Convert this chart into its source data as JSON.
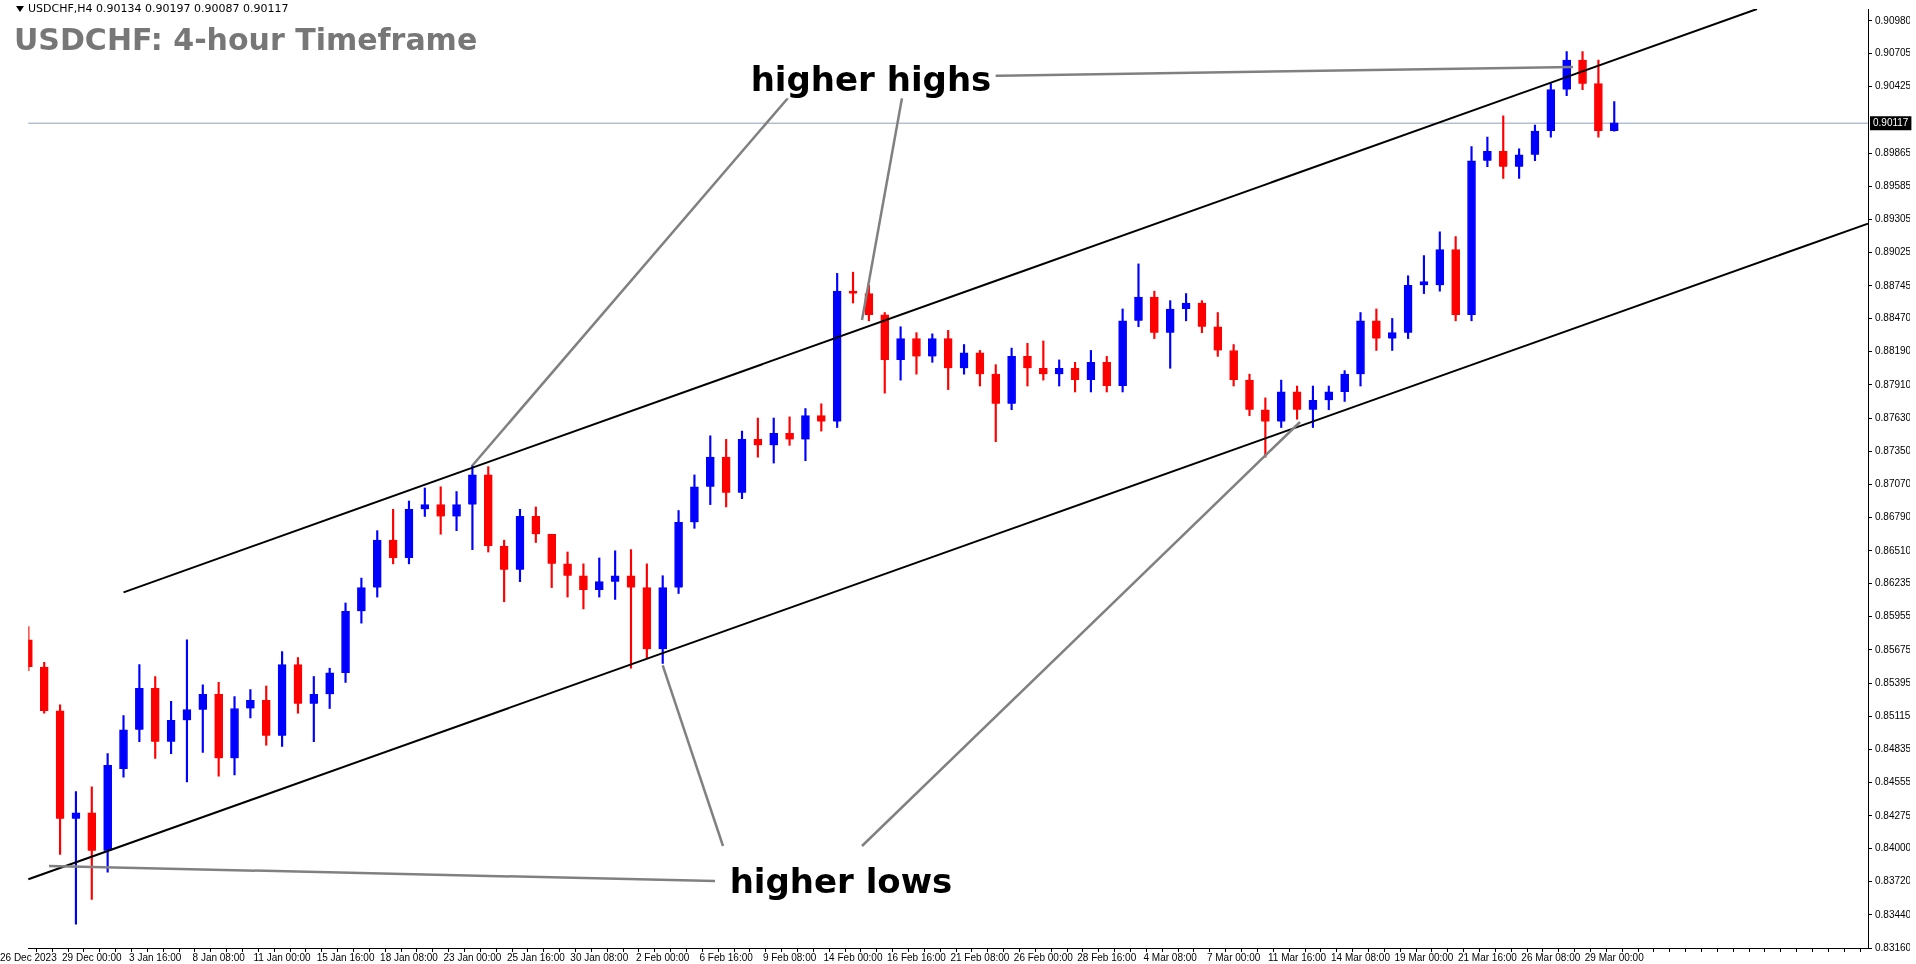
{
  "chart_data": {
    "type": "candlestick",
    "title": "USDCHF: 4-hour Timeframe",
    "annotations": [
      "USDCHF,H4  0.90134 0.90197 0.90087 0.90117",
      {
        "text": "higher highs",
        "x": "23 Jan 00:00",
        "y": 0.8723
      },
      {
        "text": "higher lows",
        "x": "2 Feb 00:00",
        "y": 0.8556
      }
    ],
    "categories": [
      "26 Dec 2023",
      null,
      null,
      null,
      "29 Dec 00:00",
      null,
      null,
      null,
      "3 Jan 16:00",
      null,
      null,
      null,
      "8 Jan 08:00",
      null,
      null,
      null,
      "11 Jan 00:00",
      null,
      null,
      null,
      "15 Jan 16:00",
      null,
      null,
      null,
      "18 Jan 08:00",
      null,
      null,
      null,
      "23 Jan 00:00",
      null,
      null,
      null,
      "25 Jan 16:00",
      null,
      null,
      null,
      "30 Jan 08:00",
      null,
      null,
      null,
      "2 Feb 00:00",
      null,
      null,
      null,
      "6 Feb 16:00",
      null,
      null,
      null,
      "9 Feb 08:00",
      null,
      null,
      null,
      "14 Feb 00:00",
      null,
      null,
      null,
      "16 Feb 16:00",
      null,
      null,
      null,
      "21 Feb 08:00",
      null,
      null,
      null,
      "26 Feb 00:00",
      null,
      null,
      null,
      "28 Feb 16:00",
      null,
      null,
      null,
      "4 Mar 08:00",
      null,
      null,
      null,
      "7 Mar 00:00",
      null,
      null,
      null,
      "11 Mar 16:00",
      null,
      null,
      null,
      "14 Mar 08:00",
      null,
      null,
      null,
      "19 Mar 00:00",
      null,
      null,
      null,
      "21 Mar 16:00",
      null,
      null,
      null,
      "26 Mar 08:00",
      null,
      null,
      null,
      "29 Mar 00:00",
      null,
      null,
      null,
      null,
      null,
      null,
      null,
      null,
      null,
      null,
      null,
      null,
      null,
      null,
      null,
      null
    ],
    "ohlc": [
      [
        0.8576,
        0.8587,
        0.855,
        0.8553
      ],
      [
        0.8553,
        0.8557,
        0.8514,
        0.8516
      ],
      [
        0.8516,
        0.8521,
        0.8395,
        0.8425
      ],
      [
        0.8425,
        0.8448,
        0.8336,
        0.843
      ],
      [
        0.843,
        0.8452,
        0.8357,
        0.8398
      ],
      [
        0.8398,
        0.848,
        0.838,
        0.847
      ],
      [
        0.8467,
        0.8512,
        0.846,
        0.85
      ],
      [
        0.85,
        0.8555,
        0.849,
        0.8535
      ],
      [
        0.8535,
        0.8545,
        0.8476,
        0.849
      ],
      [
        0.849,
        0.8524,
        0.848,
        0.8508
      ],
      [
        0.8508,
        0.8576,
        0.8456,
        0.8517
      ],
      [
        0.8517,
        0.8538,
        0.8481,
        0.853
      ],
      [
        0.853,
        0.854,
        0.8461,
        0.8476
      ],
      [
        0.8476,
        0.8528,
        0.8462,
        0.8518
      ],
      [
        0.8518,
        0.8534,
        0.851,
        0.8525
      ],
      [
        0.8525,
        0.8537,
        0.8487,
        0.8495
      ],
      [
        0.8495,
        0.8566,
        0.8486,
        0.8555
      ],
      [
        0.8555,
        0.8561,
        0.8514,
        0.8522
      ],
      [
        0.8522,
        0.8545,
        0.849,
        0.853
      ],
      [
        0.853,
        0.8552,
        0.8518,
        0.8548
      ],
      [
        0.8548,
        0.8607,
        0.854,
        0.86
      ],
      [
        0.86,
        0.8628,
        0.859,
        0.862
      ],
      [
        0.862,
        0.8668,
        0.8612,
        0.866
      ],
      [
        0.866,
        0.8686,
        0.864,
        0.8645
      ],
      [
        0.8645,
        0.8693,
        0.864,
        0.8686
      ],
      [
        0.8686,
        0.8704,
        0.868,
        0.869
      ],
      [
        0.869,
        0.8705,
        0.8665,
        0.868
      ],
      [
        0.868,
        0.8701,
        0.8668,
        0.869
      ],
      [
        0.869,
        0.8723,
        0.8652,
        0.8715
      ],
      [
        0.8715,
        0.8722,
        0.865,
        0.8655
      ],
      [
        0.8655,
        0.866,
        0.8608,
        0.8635
      ],
      [
        0.8635,
        0.8686,
        0.8625,
        0.868
      ],
      [
        0.868,
        0.8688,
        0.8658,
        0.8665
      ],
      [
        0.8665,
        0.8665,
        0.862,
        0.864
      ],
      [
        0.864,
        0.865,
        0.8612,
        0.863
      ],
      [
        0.863,
        0.864,
        0.8602,
        0.8618
      ],
      [
        0.8618,
        0.8645,
        0.8612,
        0.8625
      ],
      [
        0.8625,
        0.8651,
        0.861,
        0.863
      ],
      [
        0.863,
        0.8652,
        0.8552,
        0.862
      ],
      [
        0.862,
        0.864,
        0.856,
        0.8568
      ],
      [
        0.8568,
        0.863,
        0.8556,
        0.862
      ],
      [
        0.862,
        0.8685,
        0.8615,
        0.8675
      ],
      [
        0.8675,
        0.8715,
        0.867,
        0.8705
      ],
      [
        0.8705,
        0.8748,
        0.869,
        0.873
      ],
      [
        0.873,
        0.8745,
        0.8688,
        0.87
      ],
      [
        0.87,
        0.8752,
        0.8695,
        0.8745
      ],
      [
        0.8745,
        0.8763,
        0.873,
        0.874
      ],
      [
        0.874,
        0.8763,
        0.8725,
        0.875
      ],
      [
        0.875,
        0.8764,
        0.874,
        0.8745
      ],
      [
        0.8745,
        0.8771,
        0.8727,
        0.8765
      ],
      [
        0.8765,
        0.8775,
        0.8752,
        0.876
      ],
      [
        0.876,
        0.8885,
        0.8755,
        0.887
      ],
      [
        0.887,
        0.8886,
        0.886,
        0.8868
      ],
      [
        0.8868,
        0.8875,
        0.8845,
        0.885
      ],
      [
        0.885,
        0.8852,
        0.8784,
        0.8812
      ],
      [
        0.8812,
        0.884,
        0.8795,
        0.883
      ],
      [
        0.883,
        0.8835,
        0.88,
        0.8815
      ],
      [
        0.8815,
        0.8834,
        0.881,
        0.883
      ],
      [
        0.883,
        0.8837,
        0.8787,
        0.8805
      ],
      [
        0.8805,
        0.8825,
        0.88,
        0.8818
      ],
      [
        0.8818,
        0.882,
        0.879,
        0.88
      ],
      [
        0.88,
        0.8808,
        0.8743,
        0.8775
      ],
      [
        0.8775,
        0.8822,
        0.877,
        0.8815
      ],
      [
        0.8815,
        0.8826,
        0.879,
        0.8805
      ],
      [
        0.8805,
        0.8828,
        0.8795,
        0.88
      ],
      [
        0.88,
        0.8812,
        0.879,
        0.8805
      ],
      [
        0.8805,
        0.881,
        0.8785,
        0.8795
      ],
      [
        0.8795,
        0.882,
        0.8785,
        0.881
      ],
      [
        0.881,
        0.8815,
        0.8785,
        0.879
      ],
      [
        0.879,
        0.8855,
        0.8785,
        0.8845
      ],
      [
        0.8845,
        0.8893,
        0.884,
        0.8865
      ],
      [
        0.8865,
        0.887,
        0.883,
        0.8835
      ],
      [
        0.8835,
        0.8862,
        0.8805,
        0.8855
      ],
      [
        0.8855,
        0.8868,
        0.8845,
        0.886
      ],
      [
        0.886,
        0.8862,
        0.8835,
        0.884
      ],
      [
        0.884,
        0.8852,
        0.8815,
        0.882
      ],
      [
        0.882,
        0.8825,
        0.879,
        0.8795
      ],
      [
        0.8795,
        0.88,
        0.8765,
        0.877
      ],
      [
        0.877,
        0.878,
        0.873,
        0.876
      ],
      [
        0.876,
        0.8795,
        0.8755,
        0.8785
      ],
      [
        0.8785,
        0.879,
        0.8762,
        0.877
      ],
      [
        0.877,
        0.879,
        0.8755,
        0.8778
      ],
      [
        0.8778,
        0.879,
        0.877,
        0.8785
      ],
      [
        0.8785,
        0.8803,
        0.8777,
        0.88
      ],
      [
        0.88,
        0.8852,
        0.879,
        0.8845
      ],
      [
        0.8845,
        0.8855,
        0.882,
        0.883
      ],
      [
        0.883,
        0.8847,
        0.882,
        0.8835
      ],
      [
        0.8835,
        0.8883,
        0.883,
        0.8875
      ],
      [
        0.8875,
        0.89,
        0.8868,
        0.8878
      ],
      [
        0.8875,
        0.892,
        0.887,
        0.8905
      ],
      [
        0.8905,
        0.8916,
        0.8845,
        0.885
      ],
      [
        0.885,
        0.8992,
        0.8845,
        0.898
      ],
      [
        0.898,
        0.9,
        0.8975,
        0.8988
      ],
      [
        0.8988,
        0.9018,
        0.8965,
        0.8975
      ],
      [
        0.8975,
        0.899,
        0.8965,
        0.8985
      ],
      [
        0.8985,
        0.901,
        0.898,
        0.9005
      ],
      [
        0.9005,
        0.9045,
        0.9,
        0.904
      ],
      [
        0.904,
        0.9072,
        0.9035,
        0.9065
      ],
      [
        0.9065,
        0.9072,
        0.904,
        0.9045
      ],
      [
        0.9045,
        0.9065,
        0.9,
        0.9005
      ],
      [
        0.9005,
        0.903,
        0.9005,
        0.9012
      ],
      null,
      null,
      null,
      null,
      null,
      null,
      null,
      null,
      null,
      null,
      null,
      null,
      null,
      null,
      null,
      null
    ],
    "colors": [
      "#ff0000",
      "#ff0000",
      "#ff0000",
      "#0000ff",
      "#ff0000",
      "#0000ff",
      "#0000ff",
      "#0000ff",
      "#ff0000",
      "#0000ff",
      "#0000ff",
      "#0000ff",
      "#ff0000",
      "#0000ff",
      "#0000ff",
      "#ff0000",
      "#0000ff",
      "#ff0000",
      "#0000ff",
      "#0000ff",
      "#0000ff",
      "#0000ff",
      "#0000ff",
      "#ff0000",
      "#0000ff",
      "#0000ff",
      "#ff0000",
      "#0000ff",
      "#0000ff",
      "#ff0000",
      "#ff0000",
      "#0000ff",
      "#ff0000",
      "#ff0000",
      "#ff0000",
      "#ff0000",
      "#0000ff",
      "#0000ff",
      "#ff0000",
      "#ff0000",
      "#0000ff",
      "#0000ff",
      "#0000ff",
      "#0000ff",
      "#ff0000",
      "#0000ff",
      "#ff0000",
      "#0000ff",
      "#ff0000",
      "#0000ff",
      "#ff0000",
      "#0000ff",
      "#ff0000",
      "#ff0000",
      "#ff0000",
      "#0000ff",
      "#ff0000",
      "#0000ff",
      "#ff0000",
      "#0000ff",
      "#ff0000",
      "#ff0000",
      "#0000ff",
      "#ff0000",
      "#ff0000",
      "#0000ff",
      "#ff0000",
      "#0000ff",
      "#ff0000",
      "#0000ff",
      "#0000ff",
      "#ff0000",
      "#0000ff",
      "#0000ff",
      "#ff0000",
      "#ff0000",
      "#ff0000",
      "#ff0000",
      "#ff0000",
      "#0000ff",
      "#ff0000",
      "#0000ff",
      "#0000ff",
      "#0000ff",
      "#0000ff",
      "#ff0000",
      "#0000ff",
      "#0000ff",
      "#0000ff",
      "#0000ff",
      "#ff0000",
      "#0000ff",
      "#0000ff",
      "#ff0000",
      "#0000ff",
      "#0000ff",
      "#0000ff",
      "#0000ff",
      "#ff0000",
      "#ff0000",
      "#0000ff",
      null,
      null,
      null,
      null,
      null,
      null,
      null,
      null,
      null,
      null,
      null,
      null,
      null,
      null,
      null,
      null
    ],
    "series": [
      {
        "type": "line",
        "color": "#000000",
        "values": [
          null,
          null,
          null,
          null,
          null,
          null,
          0.8616,
          null,
          null,
          null,
          null,
          null,
          null,
          null,
          null,
          null,
          null,
          null,
          null,
          null,
          null,
          null,
          null,
          null,
          null,
          null,
          null,
          null,
          null,
          null,
          null,
          null,
          null,
          null,
          null,
          null,
          null,
          null,
          null,
          null,
          null,
          null,
          null,
          null,
          null,
          null,
          null,
          null,
          null,
          null,
          null,
          null,
          null,
          null,
          null,
          null,
          null,
          null,
          null,
          null,
          null,
          null,
          null,
          null,
          null,
          null,
          null,
          null,
          null,
          null,
          null,
          null,
          null,
          null,
          null,
          null,
          null,
          null,
          null,
          null,
          null,
          null,
          null,
          null,
          null,
          null,
          null,
          null,
          null,
          null,
          null,
          null,
          null,
          null,
          null,
          null,
          null,
          null,
          null,
          null,
          null,
          null,
          null,
          null,
          null,
          null,
          null,
          null,
          null,
          0.9108,
          null,
          null,
          null,
          null,
          null,
          null,
          null
        ]
      },
      {
        "type": "line",
        "color": "#000000",
        "values": [
          0.8374,
          null,
          null,
          null,
          null,
          null,
          null,
          null,
          null,
          null,
          null,
          null,
          null,
          null,
          null,
          null,
          null,
          null,
          null,
          null,
          null,
          null,
          null,
          null,
          null,
          null,
          null,
          null,
          null,
          null,
          null,
          null,
          null,
          null,
          null,
          null,
          null,
          null,
          null,
          null,
          null,
          null,
          null,
          null,
          null,
          null,
          null,
          null,
          null,
          null,
          null,
          null,
          null,
          null,
          null,
          null,
          null,
          null,
          null,
          null,
          null,
          null,
          null,
          null,
          null,
          null,
          null,
          null,
          null,
          null,
          null,
          null,
          null,
          null,
          null,
          null,
          null,
          null,
          null,
          null,
          null,
          null,
          null,
          null,
          null,
          null,
          null,
          null,
          null,
          null,
          null,
          null,
          null,
          null,
          null,
          null,
          null,
          null,
          null,
          null,
          null,
          null,
          null,
          null,
          null,
          null,
          null,
          null,
          null,
          null,
          null,
          null,
          null,
          null,
          null,
          null,
          0.8927
        ]
      }
    ],
    "ylim": [
      0.8316,
      0.9108
    ],
    "yticks": [
      {
        "value": 0.9098,
        "label": "0.90980"
      },
      {
        "value": 0.90705,
        "label": "0.90705"
      },
      {
        "value": 0.90425,
        "label": "0.90425"
      },
      {
        "value": 0.89865,
        "label": "0.89865"
      },
      {
        "value": 0.89585,
        "label": "0.89585"
      },
      {
        "value": 0.89305,
        "label": "0.89305"
      },
      {
        "value": 0.89025,
        "label": "0.89025"
      },
      {
        "value": 0.88745,
        "label": "0.88745"
      },
      {
        "value": 0.8847,
        "label": "0.88470"
      },
      {
        "value": 0.8819,
        "label": "0.88190"
      },
      {
        "value": 0.8791,
        "label": "0.87910"
      },
      {
        "value": 0.8763,
        "label": "0.87630"
      },
      {
        "value": 0.8735,
        "label": "0.87350"
      },
      {
        "value": 0.8707,
        "label": "0.87070"
      },
      {
        "value": 0.8679,
        "label": "0.86790"
      },
      {
        "value": 0.8651,
        "label": "0.86510"
      },
      {
        "value": 0.86235,
        "label": "0.86235"
      },
      {
        "value": 0.85955,
        "label": "0.85955"
      },
      {
        "value": 0.85675,
        "label": "0.85675"
      },
      {
        "value": 0.85395,
        "label": "0.85395"
      },
      {
        "value": 0.85115,
        "label": "0.85115"
      },
      {
        "value": 0.84835,
        "label": "0.84835"
      },
      {
        "value": 0.84555,
        "label": "0.84555"
      },
      {
        "value": 0.84275,
        "label": "0.84275"
      },
      {
        "value": 0.84,
        "label": "0.84000"
      },
      {
        "value": 0.8372,
        "label": "0.83720"
      },
      {
        "value": 0.8344,
        "label": "0.83440"
      },
      {
        "value": 0.8316,
        "label": "0.83160"
      }
    ],
    "ref_lines": [
      {
        "axis": "y",
        "value": 0.90117,
        "label": "0.90117",
        "color": "#8fa0b8"
      }
    ]
  }
}
